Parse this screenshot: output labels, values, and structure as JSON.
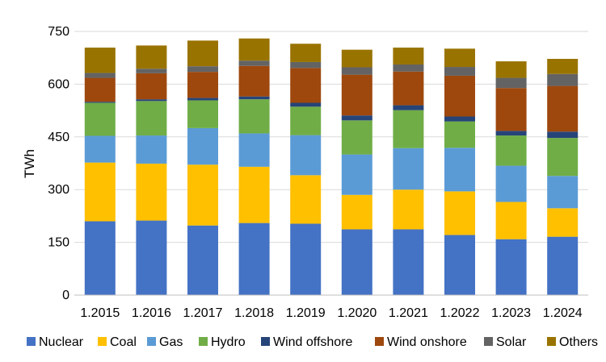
{
  "chart_data": {
    "type": "bar",
    "stacked": true,
    "title": "",
    "xlabel": "",
    "ylabel": "TWh",
    "ylim": [
      0,
      750
    ],
    "yticks": [
      0,
      150,
      300,
      450,
      600,
      750
    ],
    "grid": "horizontal",
    "legend_position": "bottom",
    "categories": [
      "1.2015",
      "1.2016",
      "1.2017",
      "1.2018",
      "1.2019",
      "1.2020",
      "1.2021",
      "1.2022",
      "1.2023",
      "1.2024"
    ],
    "series": [
      {
        "name": "Nuclear",
        "color": "#4472C4",
        "values": [
          210,
          212,
          198,
          205,
          203,
          187,
          187,
          171,
          159,
          166
        ]
      },
      {
        "name": "Coal",
        "color": "#FFC000",
        "values": [
          167,
          162,
          173,
          160,
          138,
          98,
          113,
          124,
          106,
          81
        ]
      },
      {
        "name": "Gas",
        "color": "#5B9BD5",
        "values": [
          76,
          80,
          104,
          95,
          114,
          115,
          118,
          124,
          103,
          92
        ]
      },
      {
        "name": "Hydro",
        "color": "#70AD47",
        "values": [
          94,
          98,
          79,
          97,
          81,
          97,
          108,
          75,
          86,
          108
        ]
      },
      {
        "name": "Wind offshore",
        "color": "#264478",
        "values": [
          3,
          5,
          7,
          8,
          11,
          14,
          14,
          14,
          13,
          18
        ]
      },
      {
        "name": "Wind onshore",
        "color": "#9E480E",
        "values": [
          68,
          74,
          74,
          87,
          99,
          116,
          96,
          116,
          122,
          130
        ]
      },
      {
        "name": "Solar",
        "color": "#636363",
        "values": [
          14,
          13,
          16,
          15,
          17,
          21,
          20,
          25,
          29,
          34
        ]
      },
      {
        "name": "Others",
        "color": "#997300",
        "values": [
          72,
          66,
          73,
          63,
          52,
          50,
          48,
          52,
          47,
          43
        ]
      }
    ]
  }
}
